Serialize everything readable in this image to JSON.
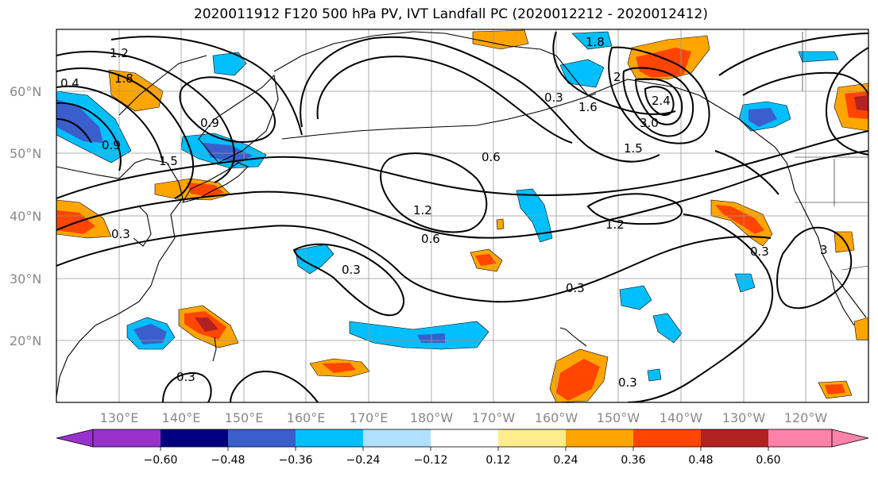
{
  "title": "2020011912 F120 500 hPa PV, IVT Landfall PC (2020012212 - 2020012412)",
  "lat_labels": [
    "60°N",
    "50°N",
    "40°N",
    "30°N",
    "20°N"
  ],
  "lon_labels": [
    "130°E",
    "140°E",
    "150°E",
    "160°E",
    "170°E",
    "180°W",
    "170°W",
    "160°W",
    "150°W",
    "140°W",
    "130°W",
    "120°W"
  ],
  "colorbar": {
    "tick_labels": [
      "−0.60",
      "−0.48",
      "−0.36",
      "−0.24",
      "−0.12",
      "0.12",
      "0.24",
      "0.36",
      "0.48",
      "0.60"
    ],
    "colors": [
      "#9932cc",
      "#000080",
      "#3a5fcd",
      "#00bfff",
      "#b0e0ff",
      "#ffffff",
      "#ffec8b",
      "#ffa500",
      "#ff4500",
      "#b22222",
      "#ff82ab"
    ]
  },
  "contour_labels": [
    "1.2",
    "1.8",
    "0.4",
    "0.9",
    "0.9",
    "1.5",
    "0.3",
    "1.8",
    "0.3",
    "1.6",
    "2",
    "2.4",
    "3.0",
    "1.5",
    "0.6",
    "1.2",
    "0.6",
    "0.3",
    "1.2",
    "0.3",
    "0.3",
    "0.3",
    "0.3",
    "3"
  ]
}
